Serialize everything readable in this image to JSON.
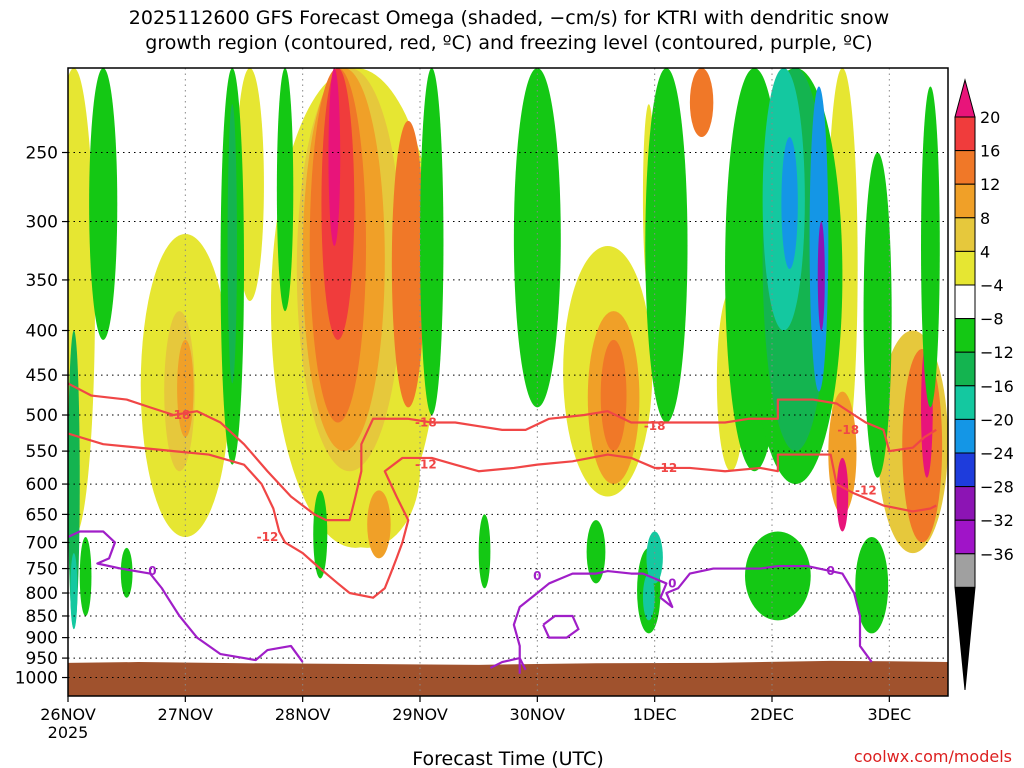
{
  "chart_data": {
    "type": "heatmap",
    "title_lines": [
      "2025112600 GFS Forecast Omega (shaded, −cm/s) for KTRI with dendritic snow",
      "growth region (contoured, red, ºC) and freezing level (contoured, purple, ºC)"
    ],
    "xlabel": "Forecast Time (UTC)",
    "ylabel": "",
    "x_ticks": [
      "26NOV",
      "27NOV",
      "28NOV",
      "29NOV",
      "30NOV",
      "1DEC",
      "2DEC",
      "3DEC"
    ],
    "x_year": "2025",
    "x_range_days": [
      0,
      7.5
    ],
    "y_ticks": [
      250,
      300,
      350,
      400,
      450,
      500,
      550,
      600,
      650,
      700,
      750,
      800,
      850,
      900,
      950,
      1000
    ],
    "y_range_hpa": [
      200,
      1050
    ],
    "colorbar": {
      "labels": [
        "20",
        "16",
        "12",
        "8",
        "4",
        "−4",
        "−8",
        "−12",
        "−16",
        "−20",
        "−24",
        "−28",
        "−32",
        "−36"
      ],
      "colors": [
        "#e8147a",
        "#f03c3c",
        "#f07828",
        "#f0a028",
        "#e6c83c",
        "#e6e632",
        "#ffffff",
        "#14c814",
        "#14b450",
        "#14c8a0",
        "#1496e6",
        "#1e3cdc",
        "#8c14b4",
        "#a014c8",
        "#a0a0a0"
      ]
    },
    "shading_blobs": [
      {
        "x": 0.05,
        "p": 390,
        "rx": 0.18,
        "rp": 300,
        "color": "#e6e632"
      },
      {
        "x": 1.0,
        "p": 500,
        "rx": 0.38,
        "rp": 190,
        "color": "#e6e632"
      },
      {
        "x": 0.95,
        "p": 480,
        "rx": 0.13,
        "rp": 100,
        "color": "#e6c83c"
      },
      {
        "x": 1.0,
        "p": 470,
        "rx": 0.07,
        "rp": 60,
        "color": "#f0a028"
      },
      {
        "x": 2.45,
        "p": 380,
        "rx": 0.72,
        "rp": 330,
        "color": "#e6e632"
      },
      {
        "x": 2.55,
        "p": 590,
        "rx": 0.45,
        "rp": 120,
        "color": "#e6e632"
      },
      {
        "x": 2.4,
        "p": 330,
        "rx": 0.45,
        "rp": 250,
        "color": "#e6c83c"
      },
      {
        "x": 2.35,
        "p": 330,
        "rx": 0.35,
        "rp": 220,
        "color": "#f0a028"
      },
      {
        "x": 2.3,
        "p": 340,
        "rx": 0.24,
        "rp": 170,
        "color": "#f07828"
      },
      {
        "x": 2.3,
        "p": 300,
        "rx": 0.14,
        "rp": 110,
        "color": "#f03c3c"
      },
      {
        "x": 2.27,
        "p": 260,
        "rx": 0.05,
        "rp": 60,
        "color": "#e8147a"
      },
      {
        "x": 2.9,
        "p": 360,
        "rx": 0.14,
        "rp": 130,
        "color": "#f07828"
      },
      {
        "x": 1.55,
        "p": 200,
        "rx": 0.12,
        "rp": 170,
        "color": "#e6e632"
      },
      {
        "x": 2.65,
        "p": 670,
        "rx": 0.1,
        "rp": 60,
        "color": "#f0a028"
      },
      {
        "x": 4.6,
        "p": 470,
        "rx": 0.38,
        "rp": 150,
        "color": "#e6e632"
      },
      {
        "x": 4.65,
        "p": 490,
        "rx": 0.22,
        "rp": 110,
        "color": "#f0a028"
      },
      {
        "x": 4.65,
        "p": 480,
        "rx": 0.11,
        "rp": 70,
        "color": "#f07828"
      },
      {
        "x": 4.95,
        "p": 290,
        "rx": 0.05,
        "rp": 70,
        "color": "#e6e632"
      },
      {
        "x": 5.65,
        "p": 470,
        "rx": 0.12,
        "rp": 110,
        "color": "#e6e632"
      },
      {
        "x": 6.6,
        "p": 320,
        "rx": 0.13,
        "rp": 250,
        "color": "#e6e632"
      },
      {
        "x": 6.6,
        "p": 560,
        "rx": 0.12,
        "rp": 90,
        "color": "#f0a028"
      },
      {
        "x": 6.6,
        "p": 620,
        "rx": 0.05,
        "rp": 60,
        "color": "#e8147a"
      },
      {
        "x": 7.2,
        "p": 560,
        "rx": 0.3,
        "rp": 160,
        "color": "#e6c83c"
      },
      {
        "x": 7.28,
        "p": 560,
        "rx": 0.17,
        "rp": 140,
        "color": "#f07828"
      },
      {
        "x": 7.32,
        "p": 500,
        "rx": 0.05,
        "rp": 90,
        "color": "#e8147a"
      },
      {
        "x": 5.4,
        "p": 215,
        "rx": 0.1,
        "rp": 25,
        "color": "#f07828"
      },
      {
        "x": 0.3,
        "p": 250,
        "rx": 0.12,
        "rp": 160,
        "color": "#14c814"
      },
      {
        "x": 0.15,
        "p": 770,
        "rx": 0.05,
        "rp": 80,
        "color": "#14c814"
      },
      {
        "x": 0.5,
        "p": 760,
        "rx": 0.05,
        "rp": 50,
        "color": "#14c814"
      },
      {
        "x": 1.4,
        "p": 340,
        "rx": 0.1,
        "rp": 230,
        "color": "#14c814"
      },
      {
        "x": 1.4,
        "p": 340,
        "rx": 0.04,
        "rp": 120,
        "color": "#14b450"
      },
      {
        "x": 1.85,
        "p": 240,
        "rx": 0.07,
        "rp": 140,
        "color": "#14c814"
      },
      {
        "x": 3.1,
        "p": 260,
        "rx": 0.1,
        "rp": 240,
        "color": "#14c814"
      },
      {
        "x": 2.15,
        "p": 690,
        "rx": 0.06,
        "rp": 80,
        "color": "#14c814"
      },
      {
        "x": 3.55,
        "p": 720,
        "rx": 0.05,
        "rp": 70,
        "color": "#14c814"
      },
      {
        "x": 4.0,
        "p": 270,
        "rx": 0.2,
        "rp": 220,
        "color": "#14c814"
      },
      {
        "x": 4.5,
        "p": 720,
        "rx": 0.08,
        "rp": 60,
        "color": "#14c814"
      },
      {
        "x": 4.95,
        "p": 800,
        "rx": 0.1,
        "rp": 90,
        "color": "#14c814"
      },
      {
        "x": 4.95,
        "p": 810,
        "rx": 0.05,
        "rp": 50,
        "color": "#14c8a0"
      },
      {
        "x": 5.1,
        "p": 330,
        "rx": 0.18,
        "rp": 180,
        "color": "#14c814"
      },
      {
        "x": 5.85,
        "p": 360,
        "rx": 0.25,
        "rp": 220,
        "color": "#14c814"
      },
      {
        "x": 6.2,
        "p": 340,
        "rx": 0.4,
        "rp": 260,
        "color": "#14c814"
      },
      {
        "x": 6.2,
        "p": 330,
        "rx": 0.28,
        "rp": 220,
        "color": "#14b450"
      },
      {
        "x": 6.1,
        "p": 290,
        "rx": 0.18,
        "rp": 110,
        "color": "#14c8a0"
      },
      {
        "x": 6.15,
        "p": 290,
        "rx": 0.07,
        "rp": 50,
        "color": "#1496e6"
      },
      {
        "x": 6.4,
        "p": 340,
        "rx": 0.08,
        "rp": 130,
        "color": "#1496e6"
      },
      {
        "x": 6.42,
        "p": 350,
        "rx": 0.03,
        "rp": 50,
        "color": "#8c14b4"
      },
      {
        "x": 6.9,
        "p": 420,
        "rx": 0.12,
        "rp": 170,
        "color": "#14c814"
      },
      {
        "x": 6.05,
        "p": 770,
        "rx": 0.28,
        "rp": 90,
        "color": "#14c814"
      },
      {
        "x": 6.85,
        "p": 790,
        "rx": 0.14,
        "rp": 100,
        "color": "#14c814"
      },
      {
        "x": 7.35,
        "p": 350,
        "rx": 0.08,
        "rp": 140,
        "color": "#14c814"
      },
      {
        "x": 0.05,
        "p": 640,
        "rx": 0.05,
        "rp": 240,
        "color": "#14b450"
      },
      {
        "x": 0.05,
        "p": 800,
        "rx": 0.03,
        "rp": 80,
        "color": "#14c8a0"
      },
      {
        "x": 5.0,
        "p": 730,
        "rx": 0.07,
        "rp": 50,
        "color": "#14c8a0"
      }
    ],
    "series": [
      {
        "name": "-18",
        "color": "#f04646",
        "points": [
          [
            0.0,
            460
          ],
          [
            0.2,
            475
          ],
          [
            0.5,
            480
          ],
          [
            0.7,
            490
          ],
          [
            0.9,
            500
          ],
          [
            1.1,
            495
          ],
          [
            1.3,
            510
          ],
          [
            1.5,
            540
          ],
          [
            1.7,
            580
          ],
          [
            1.9,
            620
          ],
          [
            2.1,
            650
          ],
          [
            2.2,
            660
          ],
          [
            2.4,
            660
          ],
          [
            2.45,
            620
          ],
          [
            2.5,
            580
          ],
          [
            2.5,
            540
          ],
          [
            2.6,
            505
          ],
          [
            2.9,
            505
          ],
          [
            3.1,
            510
          ],
          [
            3.3,
            510
          ],
          [
            3.5,
            515
          ],
          [
            3.7,
            520
          ],
          [
            3.9,
            520
          ],
          [
            4.1,
            505
          ],
          [
            4.4,
            500
          ],
          [
            4.6,
            495
          ],
          [
            4.8,
            510
          ],
          [
            5.0,
            510
          ],
          [
            5.3,
            510
          ],
          [
            5.6,
            510
          ],
          [
            5.8,
            505
          ],
          [
            6.05,
            505
          ],
          [
            6.05,
            480
          ],
          [
            6.35,
            480
          ],
          [
            6.55,
            485
          ],
          [
            6.7,
            500
          ],
          [
            6.8,
            510
          ],
          [
            6.95,
            520
          ],
          [
            7.0,
            550
          ],
          [
            7.2,
            545
          ],
          [
            7.3,
            530
          ],
          [
            7.4,
            520
          ]
        ]
      },
      {
        "name": "-12",
        "color": "#f04646",
        "points": [
          [
            0.0,
            525
          ],
          [
            0.3,
            540
          ],
          [
            0.6,
            545
          ],
          [
            0.9,
            550
          ],
          [
            1.2,
            555
          ],
          [
            1.5,
            570
          ],
          [
            1.65,
            600
          ],
          [
            1.75,
            640
          ],
          [
            1.8,
            680
          ],
          [
            1.85,
            700
          ],
          [
            2.0,
            720
          ],
          [
            2.1,
            740
          ],
          [
            2.2,
            760
          ],
          [
            2.3,
            780
          ],
          [
            2.4,
            800
          ],
          [
            2.6,
            810
          ],
          [
            2.7,
            790
          ],
          [
            2.75,
            760
          ],
          [
            2.8,
            730
          ],
          [
            2.85,
            700
          ],
          [
            2.9,
            660
          ],
          [
            2.8,
            620
          ],
          [
            2.7,
            580
          ],
          [
            2.85,
            560
          ],
          [
            3.1,
            560
          ],
          [
            3.3,
            570
          ],
          [
            3.5,
            580
          ],
          [
            3.8,
            575
          ],
          [
            4.0,
            570
          ],
          [
            4.3,
            565
          ],
          [
            4.6,
            555
          ],
          [
            4.8,
            560
          ],
          [
            5.0,
            575
          ],
          [
            5.3,
            575
          ],
          [
            5.6,
            580
          ],
          [
            5.9,
            575
          ],
          [
            6.05,
            580
          ],
          [
            6.05,
            555
          ],
          [
            6.5,
            555
          ],
          [
            6.55,
            600
          ],
          [
            6.7,
            615
          ],
          [
            6.95,
            635
          ],
          [
            7.2,
            645
          ],
          [
            7.35,
            640
          ],
          [
            7.4,
            635
          ]
        ]
      },
      {
        "name": "0",
        "color": "#a01ec8",
        "points": [
          [
            0.0,
            690
          ],
          [
            0.1,
            680
          ],
          [
            0.3,
            680
          ],
          [
            0.4,
            700
          ],
          [
            0.35,
            730
          ],
          [
            0.25,
            740
          ],
          [
            0.45,
            750
          ],
          [
            0.7,
            760
          ],
          [
            0.8,
            790
          ],
          [
            0.85,
            810
          ],
          [
            0.95,
            850
          ],
          [
            1.1,
            900
          ],
          [
            1.3,
            940
          ],
          [
            1.5,
            950
          ],
          [
            1.6,
            955
          ],
          [
            1.7,
            930
          ],
          [
            1.9,
            920
          ],
          [
            2.0,
            960
          ]
        ]
      },
      {
        "name": "0",
        "color": "#a01ec8",
        "points": [
          [
            3.6,
            975
          ],
          [
            3.7,
            960
          ],
          [
            3.85,
            950
          ],
          [
            3.9,
            980
          ]
        ]
      },
      {
        "name": "0",
        "color": "#a01ec8",
        "points": [
          [
            3.85,
            990
          ],
          [
            3.85,
            920
          ],
          [
            3.8,
            870
          ],
          [
            3.85,
            830
          ],
          [
            4.0,
            800
          ],
          [
            4.1,
            780
          ],
          [
            4.2,
            770
          ],
          [
            4.3,
            760
          ],
          [
            4.5,
            760
          ],
          [
            4.6,
            755
          ],
          [
            4.8,
            760
          ],
          [
            4.9,
            760
          ],
          [
            5.0,
            770
          ],
          [
            5.1,
            780
          ],
          [
            5.05,
            810
          ],
          [
            5.15,
            830
          ],
          [
            5.1,
            800
          ],
          [
            5.2,
            790
          ],
          [
            5.3,
            760
          ],
          [
            5.5,
            750
          ],
          [
            5.7,
            750
          ],
          [
            5.9,
            750
          ],
          [
            6.05,
            745
          ],
          [
            6.3,
            745
          ],
          [
            6.5,
            755
          ],
          [
            6.6,
            760
          ],
          [
            6.7,
            800
          ],
          [
            6.75,
            850
          ],
          [
            6.75,
            920
          ],
          [
            6.85,
            960
          ]
        ]
      }
    ],
    "freezing_loop": [
      [
        4.05,
        870
      ],
      [
        4.15,
        850
      ],
      [
        4.3,
        850
      ],
      [
        4.35,
        880
      ],
      [
        4.25,
        900
      ],
      [
        4.1,
        900
      ],
      [
        4.05,
        870
      ]
    ],
    "contour_labels": [
      {
        "text": "-18",
        "x": 0.95,
        "p": 500,
        "color": "#f04646"
      },
      {
        "text": "-12",
        "x": 1.7,
        "p": 690,
        "color": "#f04646"
      },
      {
        "text": "0",
        "x": 0.72,
        "p": 755,
        "color": "#a01ec8"
      },
      {
        "text": "-18",
        "x": 3.05,
        "p": 510,
        "color": "#f04646"
      },
      {
        "text": "-12",
        "x": 3.05,
        "p": 570,
        "color": "#f04646"
      },
      {
        "text": "0",
        "x": 4.0,
        "p": 765,
        "color": "#a01ec8"
      },
      {
        "text": "-18",
        "x": 5.0,
        "p": 515,
        "color": "#f04646"
      },
      {
        "text": "-12",
        "x": 5.1,
        "p": 575,
        "color": "#f04646"
      },
      {
        "text": "0",
        "x": 5.15,
        "p": 780,
        "color": "#a01ec8"
      },
      {
        "text": "-18",
        "x": 6.65,
        "p": 520,
        "color": "#f04646"
      },
      {
        "text": "-12",
        "x": 6.8,
        "p": 610,
        "color": "#f04646"
      },
      {
        "text": "0",
        "x": 6.5,
        "p": 755,
        "color": "#a01ec8"
      }
    ],
    "terrain": {
      "color": "#a0522d",
      "top_hpa_points": [
        [
          0.0,
          962
        ],
        [
          0.6,
          960
        ],
        [
          1.5,
          963
        ],
        [
          2.5,
          965
        ],
        [
          3.5,
          967
        ],
        [
          4.5,
          963
        ],
        [
          5.5,
          962
        ],
        [
          6.5,
          957
        ],
        [
          7.0,
          958
        ],
        [
          7.5,
          960
        ]
      ]
    }
  },
  "footer": {
    "source": "coolwx.com/models"
  }
}
